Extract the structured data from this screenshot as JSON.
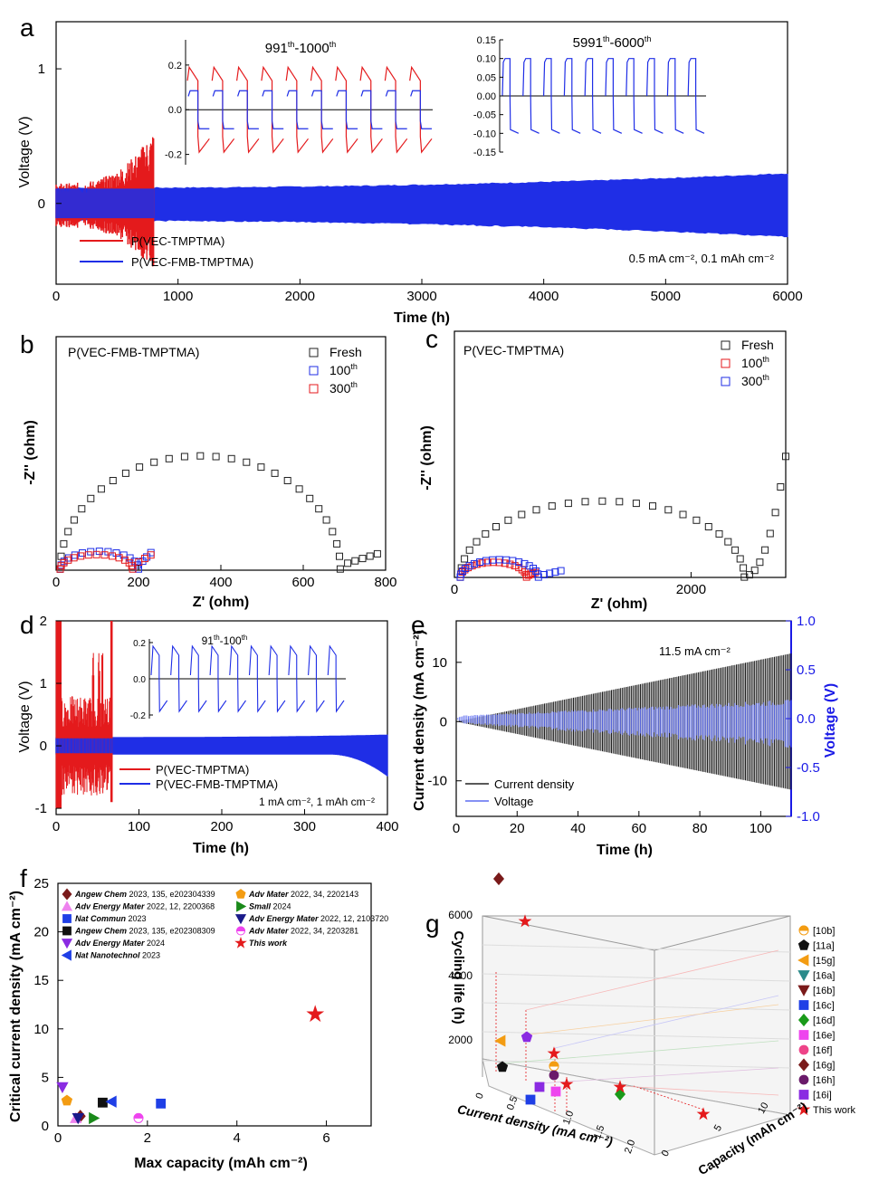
{
  "colors": {
    "red": "#e41a1c",
    "blue": "#1f2ee6",
    "lightblue": "#5d6df0",
    "black": "#222222",
    "voltaxis": "#1a1ae6",
    "sigmaRed": "#ff3b3b"
  },
  "chart_data": [
    {
      "panel": "a",
      "type": "line",
      "panel_label": "a",
      "xlabel": "Time (h)",
      "ylabel": "Voltage (V)",
      "xlim": [
        0,
        6000
      ],
      "ylim": [
        -0.6,
        1.35
      ],
      "xticks": [
        0,
        1000,
        2000,
        3000,
        4000,
        5000,
        6000
      ],
      "yticks": [
        0,
        1
      ],
      "series": [
        {
          "name": "P(VEC-TMPTMA)",
          "color": "red",
          "t_end": 800,
          "amp_start": 0.15,
          "amp_end": 0.55
        },
        {
          "name": "P(VEC-FMB-TMPTMA)",
          "color": "blue",
          "t_end": 6000,
          "amp_start": 0.12,
          "amp_end": 0.24
        }
      ],
      "annotation": "0.5 mA cm⁻², 0.1  mAh cm⁻²",
      "insets": [
        {
          "label_base": "991",
          "label_sup1": "th",
          "label_mid": "-1000",
          "label_sup2": "th",
          "yticks": [
            -0.2,
            0.0,
            0.2
          ],
          "ylim": [
            -0.23,
            0.24
          ],
          "cycles": 10,
          "red_amp": 0.19,
          "blue_amp": 0.085
        },
        {
          "label_base": "5991",
          "label_sup1": "th",
          "label_mid": "-6000",
          "label_sup2": "th",
          "yticks": [
            -0.15,
            -0.1,
            -0.05,
            0.0,
            0.05,
            0.1,
            0.15
          ],
          "ylim": [
            -0.15,
            0.15
          ],
          "cycles": 10,
          "blue_amp": 0.1
        }
      ]
    },
    {
      "panel": "b",
      "type": "scatter",
      "panel_label": "b",
      "title": "P(VEC-FMB-TMPTMA)",
      "xlabel": "Z' (ohm)",
      "ylabel": "-Z'' (ohm)",
      "xlim": [
        0,
        800
      ],
      "ylim": [
        0,
        400
      ],
      "xticks": [
        0,
        200,
        400,
        600,
        800
      ],
      "series": [
        {
          "name": "Fresh",
          "color": "black",
          "center": 350,
          "radius": 340,
          "tail_to": 780
        },
        {
          "name": "100",
          "sup": "th",
          "color": "blue",
          "center": 105,
          "radius": 95,
          "tail_to": 230
        },
        {
          "name": "300",
          "sup": "th",
          "color": "red",
          "center": 98,
          "radius": 88,
          "tail_to": 230
        }
      ]
    },
    {
      "panel": "c",
      "type": "scatter",
      "panel_label": "c",
      "title": "P(VEC-TMPTMA)",
      "xlabel": "Z' (ohm)",
      "ylabel": "-Z'' (ohm)",
      "xlim": [
        0,
        2800
      ],
      "ylim": [
        0,
        1400
      ],
      "xticks": [
        0,
        2000
      ],
      "series": [
        {
          "name": "Fresh",
          "color": "black",
          "center": 1250,
          "radius": 1200,
          "tail_to": 2800
        },
        {
          "name": "100",
          "sup": "th",
          "color": "red",
          "center": 330,
          "radius": 280,
          "tail_to": 680
        },
        {
          "name": "300",
          "sup": "th",
          "color": "blue",
          "center": 380,
          "radius": 330,
          "tail_to": 900
        }
      ]
    },
    {
      "panel": "d",
      "type": "line",
      "panel_label": "d",
      "xlabel": "Time (h)",
      "ylabel": "Voltage (V)",
      "xlim": [
        0,
        400
      ],
      "ylim": [
        -1.1,
        2.0
      ],
      "xticks": [
        0,
        100,
        200,
        300,
        400
      ],
      "yticks": [
        -1,
        0,
        1,
        2
      ],
      "series": [
        {
          "name": "P(VEC-TMPTMA)",
          "color": "red",
          "t_end": 68
        },
        {
          "name": "P(VEC-FMB-TMPTMA)",
          "color": "blue",
          "t_end": 400
        }
      ],
      "annotation": "1 mA cm⁻², 1  mAh cm⁻²",
      "inset": {
        "label_base": "91",
        "label_sup1": "th",
        "label_mid": "-100",
        "label_sup2": "th",
        "yticks": [
          -0.2,
          0.0,
          0.2
        ],
        "cycles": 10
      }
    },
    {
      "panel": "e",
      "type": "line",
      "panel_label": "e",
      "xlabel": "Time (h)",
      "ylabel": "Current density (mA cm⁻²)",
      "y2label": "Voltage (V)",
      "xlim": [
        0,
        110
      ],
      "ylim": [
        -16,
        17
      ],
      "y2lim": [
        -1.0,
        1.0
      ],
      "xticks": [
        0,
        20,
        40,
        60,
        80,
        100
      ],
      "yticks": [
        -10,
        0,
        10
      ],
      "y2ticks": [
        -1.0,
        -0.5,
        0.0,
        0.5,
        1.0
      ],
      "annotation": "11.5 mA cm⁻²",
      "series": [
        {
          "name": "Current density",
          "color": "black",
          "max": 11.5
        },
        {
          "name": "Voltage",
          "color": "lightblue",
          "max": 0.3
        }
      ]
    },
    {
      "panel": "f",
      "type": "scatter",
      "panel_label": "f",
      "xlabel": "Max capacity (mAh cm⁻²)",
      "ylabel": "Critical current density (mA cm⁻²)",
      "xlim": [
        0,
        7
      ],
      "ylim": [
        0,
        25
      ],
      "xticks": [
        0,
        2,
        4,
        6
      ],
      "yticks": [
        0,
        5,
        10,
        15,
        20,
        25
      ],
      "points": [
        {
          "journal": "Angew Chem",
          "rest": " 2023, 135, e202304339",
          "marker": "diamond",
          "color": "#7a1a1a",
          "x": 0.5,
          "y": 1.0
        },
        {
          "journal": "Adv Energy Mater",
          "rest": " 2022, 12, 2200368",
          "marker": "triangle-up",
          "color": "#ee82ee",
          "x": 0.4,
          "y": 0.8
        },
        {
          "journal": "Nat Commun",
          "rest": " 2023",
          "marker": "square",
          "color": "#1f3fe6",
          "x": 2.3,
          "y": 2.3
        },
        {
          "journal": "Angew Chem",
          "rest": " 2023, 135, e202308309",
          "marker": "square",
          "color": "#111111",
          "x": 1.0,
          "y": 2.4
        },
        {
          "journal": "Adv Energy Mater",
          "rest": " 2024",
          "marker": "triangle-down",
          "color": "#8a2be2",
          "x": 0.1,
          "y": 4.0
        },
        {
          "journal": "Nat Nanotechnol",
          "rest": " 2023",
          "marker": "triangle-left",
          "color": "#1f3fe6",
          "x": 1.2,
          "y": 2.5
        },
        {
          "journal": "Adv Mater",
          "rest": " 2022, 34, 2202143",
          "marker": "pentagon",
          "color": "#f39c12",
          "x": 0.2,
          "y": 2.6
        },
        {
          "journal": "Small",
          "rest": " 2024",
          "marker": "triangle-right",
          "color": "#1a8a1a",
          "x": 0.8,
          "y": 0.8
        },
        {
          "journal": "Adv Energy Mater",
          "rest": " 2022, 12, 2103720",
          "marker": "triangle-down",
          "color": "#1a1a8a",
          "x": 0.45,
          "y": 0.8
        },
        {
          "journal": "Adv Mater",
          "rest": " 2022, 34, 2203281",
          "marker": "halfcircle",
          "color": "#ee44ee",
          "x": 1.8,
          "y": 0.8
        },
        {
          "journal": "This work",
          "rest": "",
          "marker": "star",
          "color": "#e41a1c",
          "x": 5.75,
          "y": 11.5
        }
      ]
    },
    {
      "panel": "g",
      "type": "scatter",
      "panel_label": "g",
      "xlabel": "Current density (mA cm⁻²)",
      "ylabel": "Cycling life (h)",
      "zlabel": "Capacity (mAh cm⁻²)",
      "xticks": [
        0,
        0.5,
        1.0,
        1.5,
        2.0
      ],
      "yticks": [
        2000,
        4000,
        6000
      ],
      "zticks": [
        0,
        5,
        10
      ],
      "legend": [
        {
          "label": "[10b]",
          "marker": "halfcircle",
          "color": "#f39c12"
        },
        {
          "label": "[11a]",
          "marker": "pentagon",
          "color": "#111111"
        },
        {
          "label": "[15g]",
          "marker": "triangle-left",
          "color": "#f39c12"
        },
        {
          "label": "[16a]",
          "marker": "triangle-down",
          "color": "#2a8a8a"
        },
        {
          "label": "[16b]",
          "marker": "triangle-down",
          "color": "#7a1a1a"
        },
        {
          "label": "[16c]",
          "marker": "square",
          "color": "#1f3fe6"
        },
        {
          "label": "[16d]",
          "marker": "diamond",
          "color": "#1a9a1a"
        },
        {
          "label": "[16e]",
          "marker": "square",
          "color": "#ee44ee"
        },
        {
          "label": "[16f]",
          "marker": "circle",
          "color": "#ee4488"
        },
        {
          "label": "[16g]",
          "marker": "diamond",
          "color": "#7a1a1a"
        },
        {
          "label": "[16h]",
          "marker": "circle",
          "color": "#6a1a6a"
        },
        {
          "label": "[16i]",
          "marker": "square",
          "color": "#8a2be2"
        },
        {
          "label": "This work",
          "marker": "star",
          "color": "#e41a1c"
        }
      ]
    }
  ]
}
